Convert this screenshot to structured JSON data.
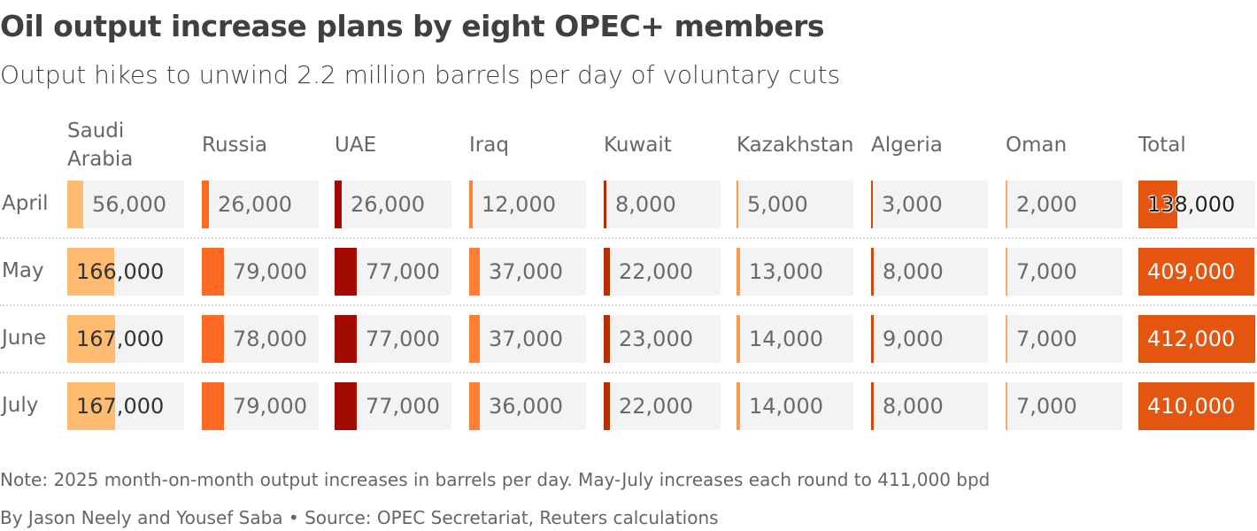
{
  "title": "Oil output increase plans by eight OPEC+ members",
  "subtitle": "Output hikes to unwind 2.2 million barrels per day of voluntary cuts",
  "note": "Note: 2025 month-on-month output increases in barrels per day. May-July increases each round to 411,000 bpd",
  "source": "By Jason Neely and Yousef Saba • Source: OPEC Secretariat, Reuters calculations",
  "chart_data": {
    "type": "table",
    "columns": [
      "Saudi Arabia",
      "Russia",
      "UAE",
      "Iraq",
      "Kuwait",
      "Kazakhstan",
      "Algeria",
      "Oman",
      "Total"
    ],
    "column_colors": [
      "#ffbb6f",
      "#ff6a22",
      "#a30a00",
      "#ff7f35",
      "#b82e00",
      "#ff9a4a",
      "#d9480f",
      "#ffa95e",
      "#e4550f"
    ],
    "rows": [
      "April",
      "May",
      "June",
      "July"
    ],
    "values": [
      [
        56000,
        26000,
        26000,
        12000,
        8000,
        5000,
        3000,
        2000,
        138000
      ],
      [
        166000,
        79000,
        77000,
        37000,
        22000,
        13000,
        8000,
        7000,
        409000
      ],
      [
        167000,
        78000,
        77000,
        37000,
        23000,
        14000,
        9000,
        7000,
        412000
      ],
      [
        167000,
        79000,
        77000,
        36000,
        22000,
        14000,
        8000,
        7000,
        410000
      ]
    ],
    "labels": [
      [
        "56,000",
        "26,000",
        "26,000",
        "12,000",
        "8,000",
        "5,000",
        "3,000",
        "2,000",
        "138,000"
      ],
      [
        "166,000",
        "79,000",
        "77,000",
        "37,000",
        "22,000",
        "13,000",
        "8,000",
        "7,000",
        "409,000"
      ],
      [
        "167,000",
        "78,000",
        "77,000",
        "37,000",
        "23,000",
        "14,000",
        "9,000",
        "7,000",
        "412,000"
      ],
      [
        "167,000",
        "79,000",
        "77,000",
        "36,000",
        "22,000",
        "14,000",
        "8,000",
        "7,000",
        "410,000"
      ]
    ]
  }
}
